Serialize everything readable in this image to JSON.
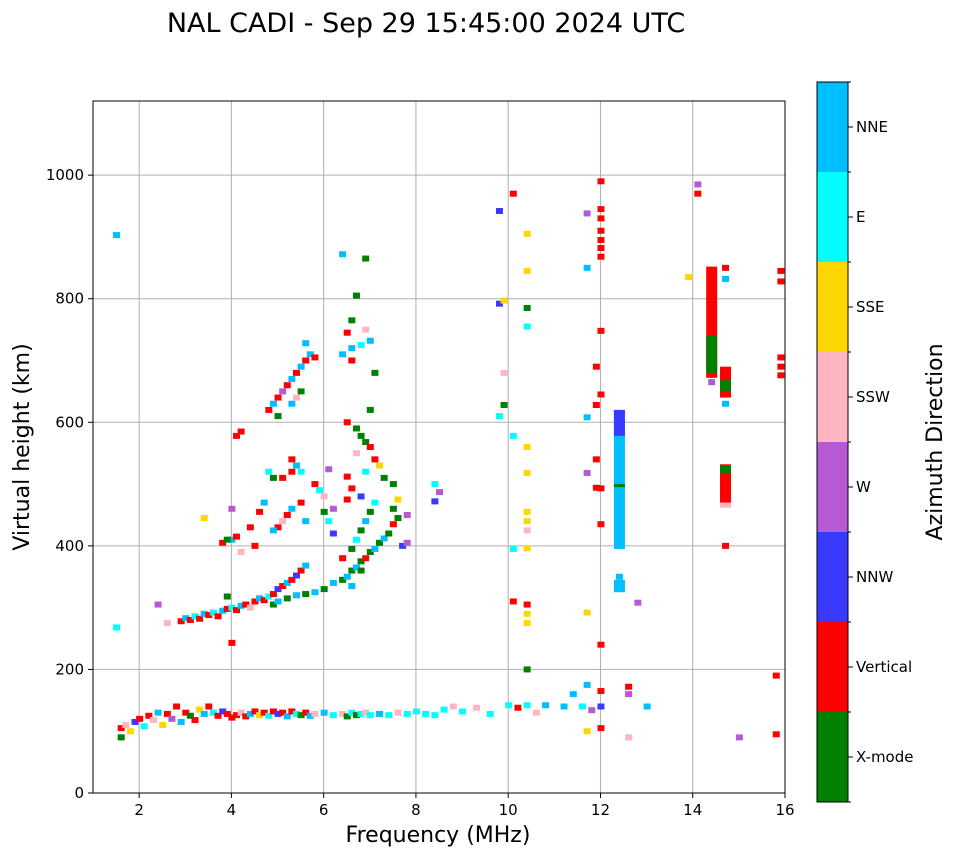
{
  "chart_data": {
    "type": "scatter",
    "title": "NAL CADI - Sep 29 15:45:00 2024 UTC",
    "xlabel": "Frequency (MHz)",
    "ylabel": "Virtual height (km)",
    "xlim": [
      1,
      16
    ],
    "ylim": [
      0,
      1120
    ],
    "xticks": [
      2,
      4,
      6,
      8,
      10,
      12,
      14,
      16
    ],
    "yticks": [
      0,
      200,
      400,
      600,
      800,
      1000
    ],
    "grid": true,
    "colorbar": {
      "label": "Azimuth Direction",
      "categories": [
        {
          "name": "X-mode",
          "color": "#008000"
        },
        {
          "name": "Vertical",
          "color": "#ff0000"
        },
        {
          "name": "NNW",
          "color": "#3a3aff"
        },
        {
          "name": "W",
          "color": "#b65ad4"
        },
        {
          "name": "SSW",
          "color": "#ffb6c1"
        },
        {
          "name": "SSE",
          "color": "#ffd700"
        },
        {
          "name": "E",
          "color": "#00ffff"
        },
        {
          "name": "NNE",
          "color": "#00bfff"
        }
      ]
    },
    "points": [
      [
        1.6,
        90,
        "X-mode"
      ],
      [
        1.6,
        105,
        "Vertical"
      ],
      [
        1.7,
        110,
        "SSW"
      ],
      [
        1.8,
        100,
        "SSE"
      ],
      [
        1.9,
        115,
        "NNW"
      ],
      [
        2.0,
        120,
        "Vertical"
      ],
      [
        2.1,
        108,
        "E"
      ],
      [
        2.2,
        125,
        "Vertical"
      ],
      [
        2.3,
        118,
        "SSW"
      ],
      [
        2.4,
        130,
        "NNE"
      ],
      [
        2.5,
        110,
        "SSE"
      ],
      [
        2.6,
        128,
        "Vertical"
      ],
      [
        2.7,
        120,
        "W"
      ],
      [
        2.8,
        140,
        "Vertical"
      ],
      [
        2.9,
        115,
        "NNE"
      ],
      [
        3.0,
        130,
        "Vertical"
      ],
      [
        3.1,
        125,
        "X-mode"
      ],
      [
        3.2,
        118,
        "Vertical"
      ],
      [
        3.3,
        135,
        "SSE"
      ],
      [
        3.4,
        128,
        "NNE"
      ],
      [
        3.5,
        140,
        "Vertical"
      ],
      [
        3.6,
        130,
        "E"
      ],
      [
        3.7,
        125,
        "Vertical"
      ],
      [
        3.8,
        132,
        "NNW"
      ],
      [
        3.9,
        128,
        "Vertical"
      ],
      [
        4.0,
        122,
        "Vertical"
      ],
      [
        4.1,
        126,
        "Vertical"
      ],
      [
        4.2,
        130,
        "SSW"
      ],
      [
        4.3,
        124,
        "Vertical"
      ],
      [
        4.4,
        128,
        "NNE"
      ],
      [
        4.5,
        132,
        "Vertical"
      ],
      [
        4.6,
        126,
        "SSE"
      ],
      [
        4.7,
        130,
        "Vertical"
      ],
      [
        4.8,
        125,
        "E"
      ],
      [
        4.9,
        132,
        "Vertical"
      ],
      [
        5.0,
        128,
        "NNW"
      ],
      [
        5.1,
        130,
        "Vertical"
      ],
      [
        5.2,
        124,
        "NNE"
      ],
      [
        5.3,
        132,
        "Vertical"
      ],
      [
        5.4,
        128,
        "E"
      ],
      [
        5.5,
        126,
        "X-mode"
      ],
      [
        5.6,
        130,
        "Vertical"
      ],
      [
        5.7,
        125,
        "NNE"
      ],
      [
        5.8,
        128,
        "SSW"
      ],
      [
        6.0,
        130,
        "NNE"
      ],
      [
        6.2,
        126,
        "E"
      ],
      [
        6.4,
        128,
        "SSW"
      ],
      [
        6.5,
        124,
        "X-mode"
      ],
      [
        6.6,
        130,
        "E"
      ],
      [
        6.7,
        126,
        "X-mode"
      ],
      [
        6.8,
        128,
        "E"
      ],
      [
        6.9,
        130,
        "SSW"
      ],
      [
        7.0,
        126,
        "E"
      ],
      [
        7.2,
        128,
        "NNE"
      ],
      [
        7.4,
        126,
        "E"
      ],
      [
        7.6,
        130,
        "SSW"
      ],
      [
        7.8,
        128,
        "E"
      ],
      [
        8.0,
        132,
        "E"
      ],
      [
        8.2,
        128,
        "E"
      ],
      [
        8.4,
        126,
        "E"
      ],
      [
        8.6,
        135,
        "E"
      ],
      [
        8.8,
        140,
        "SSW"
      ],
      [
        9.0,
        132,
        "E"
      ],
      [
        9.3,
        138,
        "SSW"
      ],
      [
        9.6,
        128,
        "E"
      ],
      [
        10.0,
        142,
        "E"
      ],
      [
        10.2,
        138,
        "Vertical"
      ],
      [
        10.4,
        142,
        "E"
      ],
      [
        10.6,
        130,
        "SSW"
      ],
      [
        10.8,
        142,
        "NNE"
      ],
      [
        11.2,
        140,
        "NNE"
      ],
      [
        11.4,
        160,
        "NNE"
      ],
      [
        11.6,
        140,
        "E"
      ],
      [
        11.8,
        134,
        "W"
      ],
      [
        12.0,
        140,
        "NNW"
      ],
      [
        12.0,
        165,
        "Vertical"
      ],
      [
        12.0,
        105,
        "Vertical"
      ],
      [
        12.6,
        160,
        "W"
      ],
      [
        12.6,
        172,
        "Vertical"
      ],
      [
        12.6,
        90,
        "SSW"
      ],
      [
        13.0,
        140,
        "NNE"
      ],
      [
        15.0,
        90,
        "W"
      ],
      [
        15.8,
        95,
        "Vertical"
      ],
      [
        15.8,
        190,
        "Vertical"
      ],
      [
        11.7,
        100,
        "SSE"
      ],
      [
        2.9,
        278,
        "Vertical"
      ],
      [
        3.0,
        283,
        "NNE"
      ],
      [
        3.1,
        280,
        "Vertical"
      ],
      [
        3.2,
        286,
        "E"
      ],
      [
        3.3,
        282,
        "Vertical"
      ],
      [
        3.4,
        290,
        "NNE"
      ],
      [
        3.5,
        288,
        "Vertical"
      ],
      [
        3.6,
        292,
        "E"
      ],
      [
        3.7,
        286,
        "Vertical"
      ],
      [
        3.8,
        295,
        "NNE"
      ],
      [
        3.9,
        298,
        "Vertical"
      ],
      [
        4.0,
        300,
        "E"
      ],
      [
        4.1,
        296,
        "Vertical"
      ],
      [
        4.2,
        303,
        "NNE"
      ],
      [
        4.3,
        305,
        "Vertical"
      ],
      [
        4.4,
        300,
        "SSW"
      ],
      [
        4.5,
        310,
        "Vertical"
      ],
      [
        4.6,
        315,
        "NNE"
      ],
      [
        4.7,
        312,
        "Vertical"
      ],
      [
        4.8,
        318,
        "E"
      ],
      [
        4.9,
        322,
        "Vertical"
      ],
      [
        5.0,
        330,
        "NNW"
      ],
      [
        5.1,
        335,
        "Vertical"
      ],
      [
        5.2,
        340,
        "NNE"
      ],
      [
        5.3,
        345,
        "Vertical"
      ],
      [
        5.4,
        352,
        "NNW"
      ],
      [
        5.5,
        360,
        "Vertical"
      ],
      [
        5.6,
        368,
        "NNE"
      ],
      [
        3.9,
        318,
        "X-mode"
      ],
      [
        4.0,
        243,
        "Vertical"
      ],
      [
        2.6,
        275,
        "SSW"
      ],
      [
        2.4,
        305,
        "W"
      ],
      [
        4.9,
        305,
        "X-mode"
      ],
      [
        5.0,
        310,
        "NNE"
      ],
      [
        5.2,
        315,
        "X-mode"
      ],
      [
        5.4,
        320,
        "NNE"
      ],
      [
        5.6,
        322,
        "X-mode"
      ],
      [
        5.8,
        325,
        "NNE"
      ],
      [
        6.0,
        330,
        "X-mode"
      ],
      [
        6.2,
        340,
        "NNE"
      ],
      [
        6.4,
        345,
        "X-mode"
      ],
      [
        6.5,
        350,
        "NNE"
      ],
      [
        6.6,
        360,
        "X-mode"
      ],
      [
        6.7,
        365,
        "NNE"
      ],
      [
        6.8,
        375,
        "X-mode"
      ],
      [
        6.9,
        380,
        "Vertical"
      ],
      [
        7.0,
        390,
        "X-mode"
      ],
      [
        7.1,
        395,
        "NNE"
      ],
      [
        7.2,
        405,
        "X-mode"
      ],
      [
        7.3,
        412,
        "NNE"
      ],
      [
        7.4,
        420,
        "X-mode"
      ],
      [
        7.5,
        435,
        "Vertical"
      ],
      [
        7.6,
        445,
        "X-mode"
      ],
      [
        7.7,
        400,
        "NNW"
      ],
      [
        7.8,
        405,
        "W"
      ],
      [
        6.4,
        380,
        "Vertical"
      ],
      [
        6.6,
        395,
        "X-mode"
      ],
      [
        6.7,
        410,
        "E"
      ],
      [
        6.8,
        425,
        "X-mode"
      ],
      [
        6.9,
        440,
        "NNE"
      ],
      [
        7.0,
        455,
        "X-mode"
      ],
      [
        7.1,
        470,
        "E"
      ],
      [
        6.6,
        335,
        "NNE"
      ],
      [
        6.8,
        360,
        "X-mode"
      ],
      [
        4.8,
        620,
        "Vertical"
      ],
      [
        4.9,
        630,
        "NNE"
      ],
      [
        5.0,
        640,
        "Vertical"
      ],
      [
        5.1,
        650,
        "W"
      ],
      [
        5.2,
        660,
        "Vertical"
      ],
      [
        5.3,
        670,
        "NNE"
      ],
      [
        5.4,
        680,
        "Vertical"
      ],
      [
        5.5,
        690,
        "NNE"
      ],
      [
        5.6,
        700,
        "Vertical"
      ],
      [
        5.7,
        710,
        "NNE"
      ],
      [
        5.8,
        705,
        "Vertical"
      ],
      [
        5.6,
        728,
        "NNE"
      ],
      [
        5.4,
        640,
        "SSW"
      ],
      [
        5.5,
        650,
        "X-mode"
      ],
      [
        5.3,
        630,
        "NNE"
      ],
      [
        5.0,
        610,
        "X-mode"
      ],
      [
        4.6,
        455,
        "Vertical"
      ],
      [
        4.7,
        470,
        "NNE"
      ],
      [
        5.0,
        430,
        "Vertical"
      ],
      [
        5.1,
        440,
        "SSW"
      ],
      [
        5.2,
        450,
        "Vertical"
      ],
      [
        5.3,
        460,
        "NNE"
      ],
      [
        5.5,
        470,
        "Vertical"
      ],
      [
        5.6,
        440,
        "NNE"
      ],
      [
        4.5,
        400,
        "Vertical"
      ],
      [
        4.2,
        390,
        "SSW"
      ],
      [
        4.0,
        410,
        "NNE"
      ],
      [
        4.0,
        460,
        "W"
      ],
      [
        4.1,
        415,
        "Vertical"
      ],
      [
        3.8,
        405,
        "Vertical"
      ],
      [
        3.9,
        410,
        "X-mode"
      ],
      [
        4.9,
        425,
        "NNE"
      ],
      [
        4.4,
        430,
        "Vertical"
      ],
      [
        5.3,
        520,
        "Vertical"
      ],
      [
        5.1,
        510,
        "Vertical"
      ],
      [
        5.3,
        540,
        "Vertical"
      ],
      [
        4.8,
        520,
        "E"
      ],
      [
        4.9,
        510,
        "X-mode"
      ],
      [
        5.4,
        530,
        "NNE"
      ],
      [
        5.5,
        520,
        "E"
      ],
      [
        5.8,
        500,
        "Vertical"
      ],
      [
        5.9,
        490,
        "E"
      ],
      [
        6.0,
        480,
        "SSW"
      ],
      [
        6.1,
        440,
        "E"
      ],
      [
        6.2,
        420,
        "NNW"
      ],
      [
        6.1,
        524,
        "W"
      ],
      [
        6.0,
        455,
        "X-mode"
      ],
      [
        6.2,
        460,
        "W"
      ],
      [
        6.5,
        600,
        "Vertical"
      ],
      [
        6.7,
        590,
        "X-mode"
      ],
      [
        6.8,
        578,
        "X-mode"
      ],
      [
        6.9,
        568,
        "X-mode"
      ],
      [
        7.0,
        560,
        "Vertical"
      ],
      [
        7.0,
        620,
        "X-mode"
      ],
      [
        6.7,
        550,
        "SSW"
      ],
      [
        6.5,
        512,
        "Vertical"
      ],
      [
        6.6,
        493,
        "Vertical"
      ],
      [
        6.5,
        475,
        "Vertical"
      ],
      [
        6.8,
        480,
        "NNW"
      ],
      [
        6.9,
        520,
        "E"
      ],
      [
        7.1,
        540,
        "Vertical"
      ],
      [
        7.2,
        530,
        "SSE"
      ],
      [
        7.3,
        510,
        "X-mode"
      ],
      [
        7.5,
        500,
        "X-mode"
      ],
      [
        7.6,
        475,
        "SSE"
      ],
      [
        7.8,
        450,
        "W"
      ],
      [
        7.5,
        460,
        "X-mode"
      ],
      [
        6.6,
        720,
        "NNE"
      ],
      [
        6.8,
        725,
        "E"
      ],
      [
        6.9,
        750,
        "SSW"
      ],
      [
        7.0,
        732,
        "NNE"
      ],
      [
        6.5,
        745,
        "Vertical"
      ],
      [
        6.6,
        765,
        "X-mode"
      ],
      [
        6.7,
        805,
        "X-mode"
      ],
      [
        6.9,
        865,
        "X-mode"
      ],
      [
        6.4,
        872,
        "NNE"
      ],
      [
        6.4,
        710,
        "NNE"
      ],
      [
        6.6,
        700,
        "Vertical"
      ],
      [
        7.1,
        680,
        "X-mode"
      ],
      [
        1.5,
        903,
        "NNE"
      ],
      [
        1.5,
        268,
        "E"
      ],
      [
        3.4,
        445,
        "SSE"
      ],
      [
        4.1,
        578,
        "Vertical"
      ],
      [
        4.2,
        585,
        "Vertical"
      ],
      [
        8.4,
        500,
        "E"
      ],
      [
        8.5,
        487,
        "W"
      ],
      [
        8.4,
        472,
        "NNW"
      ],
      [
        10.1,
        970,
        "Vertical"
      ],
      [
        9.8,
        942,
        "NNW"
      ],
      [
        10.4,
        905,
        "SSE"
      ],
      [
        10.4,
        845,
        "SSE"
      ],
      [
        9.8,
        792,
        "NNW"
      ],
      [
        9.9,
        797,
        "SSE"
      ],
      [
        10.4,
        785,
        "X-mode"
      ],
      [
        10.4,
        755,
        "E"
      ],
      [
        9.9,
        680,
        "SSW"
      ],
      [
        9.9,
        628,
        "X-mode"
      ],
      [
        9.8,
        610,
        "E"
      ],
      [
        10.1,
        578,
        "E"
      ],
      [
        10.4,
        560,
        "SSE"
      ],
      [
        10.4,
        518,
        "SSE"
      ],
      [
        10.4,
        455,
        "SSE"
      ],
      [
        10.4,
        440,
        "SSE"
      ],
      [
        10.4,
        425,
        "SSW"
      ],
      [
        10.1,
        395,
        "E"
      ],
      [
        10.4,
        396,
        "SSE"
      ],
      [
        10.1,
        310,
        "Vertical"
      ],
      [
        10.4,
        305,
        "Vertical"
      ],
      [
        10.4,
        290,
        "SSE"
      ],
      [
        10.4,
        275,
        "SSE"
      ],
      [
        10.4,
        200,
        "X-mode"
      ],
      [
        12.0,
        990,
        "Vertical"
      ],
      [
        12.0,
        945,
        "Vertical"
      ],
      [
        12.0,
        930,
        "Vertical"
      ],
      [
        12.0,
        910,
        "Vertical"
      ],
      [
        12.0,
        895,
        "Vertical"
      ],
      [
        12.0,
        882,
        "Vertical"
      ],
      [
        12.0,
        868,
        "Vertical"
      ],
      [
        11.7,
        938,
        "W"
      ],
      [
        11.7,
        850,
        "NNE"
      ],
      [
        12.0,
        748,
        "Vertical"
      ],
      [
        11.9,
        690,
        "Vertical"
      ],
      [
        12.0,
        645,
        "Vertical"
      ],
      [
        11.9,
        628,
        "Vertical"
      ],
      [
        11.7,
        608,
        "NNE"
      ],
      [
        11.9,
        540,
        "Vertical"
      ],
      [
        11.7,
        518,
        "W"
      ],
      [
        11.9,
        494,
        "Vertical"
      ],
      [
        12.0,
        493,
        "Vertical"
      ],
      [
        12.0,
        435,
        "Vertical"
      ],
      [
        11.7,
        292,
        "SSE"
      ],
      [
        12.0,
        240,
        "Vertical"
      ],
      [
        11.7,
        175,
        "NNE"
      ],
      [
        12.4,
        350,
        "NNE"
      ],
      [
        12.8,
        308,
        "W"
      ],
      [
        13.9,
        835,
        "SSE"
      ],
      [
        14.1,
        985,
        "W"
      ],
      [
        14.1,
        970,
        "Vertical"
      ],
      [
        14.4,
        665,
        "W"
      ],
      [
        14.7,
        850,
        "Vertical"
      ],
      [
        14.7,
        832,
        "NNE"
      ],
      [
        14.7,
        630,
        "NNE"
      ],
      [
        14.7,
        400,
        "Vertical"
      ],
      [
        15.9,
        845,
        "Vertical"
      ],
      [
        15.9,
        828,
        "Vertical"
      ],
      [
        15.9,
        705,
        "Vertical"
      ],
      [
        15.9,
        690,
        "Vertical"
      ],
      [
        15.9,
        676,
        "Vertical"
      ]
    ],
    "columns": [
      {
        "x": 12.4,
        "from": 395,
        "to": 620,
        "category": "NNE"
      },
      {
        "x": 12.4,
        "from": 578,
        "to": 620,
        "category": "NNW"
      },
      {
        "x": 12.4,
        "from": 325,
        "to": 345,
        "category": "NNE"
      },
      {
        "x": 12.4,
        "from": 495,
        "to": 500,
        "category": "X-mode"
      },
      {
        "x": 14.4,
        "from": 672,
        "to": 852,
        "category": "Vertical"
      },
      {
        "x": 14.4,
        "from": 680,
        "to": 740,
        "category": "X-mode"
      },
      {
        "x": 14.7,
        "from": 640,
        "to": 690,
        "category": "Vertical"
      },
      {
        "x": 14.7,
        "from": 650,
        "to": 668,
        "category": "X-mode"
      },
      {
        "x": 14.7,
        "from": 462,
        "to": 532,
        "category": "Vertical"
      },
      {
        "x": 14.7,
        "from": 518,
        "to": 530,
        "category": "X-mode"
      },
      {
        "x": 14.7,
        "from": 462,
        "to": 470,
        "category": "SSW"
      }
    ]
  }
}
